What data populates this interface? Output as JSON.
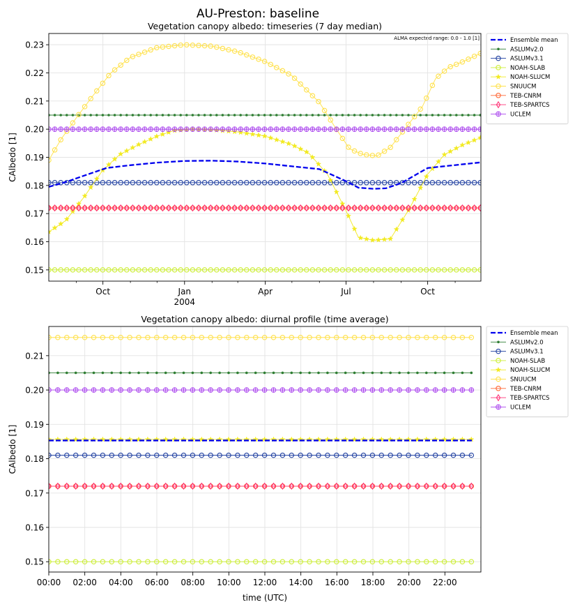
{
  "figure": {
    "title": "AU-Preston: baseline"
  },
  "chart_data": [
    {
      "type": "line",
      "title": "Vegetation canopy albedo: timeseries (7 day median)",
      "annotation": "ALMA expected range: 0.0 - 1.0 [1]",
      "xlabel": "",
      "ylabel": "CAlbedo [1]",
      "x_axis": {
        "kind": "date",
        "range": [
          "2003-08-01",
          "2004-11-30"
        ],
        "major_ticks": [
          {
            "date": "2003-10-01",
            "label": "Oct"
          },
          {
            "date": "2004-01-01",
            "label": "Jan",
            "sublabel": "2004"
          },
          {
            "date": "2004-04-01",
            "label": "Apr"
          },
          {
            "date": "2004-07-01",
            "label": "Jul"
          },
          {
            "date": "2004-10-01",
            "label": "Oct"
          }
        ],
        "minor_ticks": [
          "2003-09-01",
          "2003-11-01",
          "2003-12-01",
          "2004-02-01",
          "2004-03-01",
          "2004-05-01",
          "2004-06-01",
          "2004-08-01",
          "2004-09-01",
          "2004-11-01"
        ]
      },
      "ylim": [
        0.146,
        0.234
      ],
      "yticks": [
        0.15,
        0.16,
        0.17,
        0.18,
        0.19,
        0.2,
        0.21,
        0.22,
        0.23
      ],
      "ytick_labels": [
        "0.15",
        "0.16",
        "0.17",
        "0.18",
        "0.19",
        "0.20",
        "0.21",
        "0.22",
        "0.23"
      ],
      "grid": true,
      "legend_position": "outside-right-top",
      "series": [
        {
          "name": "Ensemble mean",
          "color": "#0000ee",
          "marker": "none",
          "style": "dashed",
          "x": [
            "2003-08-01",
            "2003-08-20",
            "2003-09-10",
            "2003-10-05",
            "2003-11-01",
            "2003-12-01",
            "2004-01-01",
            "2004-02-01",
            "2004-03-01",
            "2004-04-01",
            "2004-05-01",
            "2004-06-01",
            "2004-07-01",
            "2004-07-15",
            "2004-08-01",
            "2004-08-15",
            "2004-09-01",
            "2004-10-01",
            "2004-11-30"
          ],
          "y": [
            0.1795,
            0.1812,
            0.1835,
            0.1862,
            0.1872,
            0.1881,
            0.1887,
            0.1888,
            0.1885,
            0.1878,
            0.1868,
            0.1858,
            0.1815,
            0.1792,
            0.1788,
            0.179,
            0.1808,
            0.1862,
            0.1882
          ]
        },
        {
          "name": "ASLUMv2.0",
          "color": "#2e7d32",
          "marker": "dot",
          "style": "solid",
          "x": [
            "2003-08-01",
            "2004-11-30"
          ],
          "y": [
            0.205,
            0.205
          ]
        },
        {
          "name": "ASLUMv3.1",
          "color": "#1f3fa0",
          "marker": "circle",
          "style": "solid",
          "x": [
            "2003-08-01",
            "2004-11-30"
          ],
          "y": [
            0.181,
            0.181
          ]
        },
        {
          "name": "NOAH-SLAB",
          "color": "#ccee33",
          "marker": "circle",
          "style": "solid",
          "x": [
            "2003-08-01",
            "2004-11-30"
          ],
          "y": [
            0.15,
            0.15
          ]
        },
        {
          "name": "NOAH-SLUCM",
          "color": "#f2ea22",
          "marker": "star",
          "style": "solid",
          "x": [
            "2003-08-01",
            "2003-08-20",
            "2003-09-10",
            "2003-10-01",
            "2003-10-20",
            "2003-11-10",
            "2003-12-01",
            "2003-12-20",
            "2004-01-10",
            "2004-02-01",
            "2004-03-01",
            "2004-04-01",
            "2004-05-01",
            "2004-05-20",
            "2004-06-10",
            "2004-07-01",
            "2004-07-15",
            "2004-08-01",
            "2004-08-20",
            "2004-09-10",
            "2004-10-01",
            "2004-10-20",
            "2004-11-10",
            "2004-11-30"
          ],
          "y": [
            0.1635,
            0.1675,
            0.176,
            0.1855,
            0.191,
            0.1945,
            0.1975,
            0.1995,
            0.2,
            0.1998,
            0.199,
            0.1975,
            0.1945,
            0.1915,
            0.184,
            0.171,
            0.1615,
            0.1605,
            0.161,
            0.1715,
            0.184,
            0.191,
            0.1945,
            0.197
          ]
        },
        {
          "name": "SNUUCM",
          "color": "#ffe14a",
          "marker": "circle",
          "style": "solid",
          "x": [
            "2003-08-01",
            "2003-08-15",
            "2003-09-01",
            "2003-09-20",
            "2003-10-10",
            "2003-11-01",
            "2003-12-01",
            "2004-01-01",
            "2004-02-01",
            "2004-03-01",
            "2004-04-01",
            "2004-05-01",
            "2004-06-01",
            "2004-06-20",
            "2004-07-05",
            "2004-07-20",
            "2004-08-05",
            "2004-08-20",
            "2004-09-05",
            "2004-09-25",
            "2004-10-10",
            "2004-10-25",
            "2004-11-10",
            "2004-11-30"
          ],
          "y": [
            0.189,
            0.1965,
            0.204,
            0.212,
            0.22,
            0.2255,
            0.229,
            0.23,
            0.2295,
            0.2275,
            0.224,
            0.219,
            0.2095,
            0.2,
            0.193,
            0.191,
            0.1905,
            0.1935,
            0.2,
            0.208,
            0.218,
            0.222,
            0.224,
            0.227
          ]
        },
        {
          "name": "TEB-CNRM",
          "color": "#ff6633",
          "marker": "circle",
          "style": "solid",
          "x": [
            "2003-08-01",
            "2004-11-30"
          ],
          "y": [
            0.172,
            0.172
          ]
        },
        {
          "name": "TEB-SPARTCS",
          "color": "#ff3377",
          "marker": "diamond",
          "style": "solid",
          "x": [
            "2003-08-01",
            "2004-11-30"
          ],
          "y": [
            0.172,
            0.172
          ]
        },
        {
          "name": "UCLEM",
          "color": "#aa44ee",
          "marker": "plus-circle",
          "style": "solid",
          "x": [
            "2003-08-01",
            "2004-11-30"
          ],
          "y": [
            0.2,
            0.2
          ]
        }
      ]
    },
    {
      "type": "line",
      "title": "Vegetation canopy albedo: diurnal profile (time average)",
      "xlabel": "time (UTC)",
      "ylabel": "CAlbedo [1]",
      "xlim": [
        0,
        24
      ],
      "xticks": [
        0,
        2,
        4,
        6,
        8,
        10,
        12,
        14,
        16,
        18,
        20,
        22
      ],
      "xtick_labels": [
        "00:00",
        "02:00",
        "04:00",
        "06:00",
        "08:00",
        "10:00",
        "12:00",
        "14:00",
        "16:00",
        "18:00",
        "20:00",
        "22:00"
      ],
      "ylim": [
        0.147,
        0.2185
      ],
      "yticks": [
        0.15,
        0.16,
        0.17,
        0.18,
        0.19,
        0.2,
        0.21
      ],
      "ytick_labels": [
        "0.15",
        "0.16",
        "0.17",
        "0.18",
        "0.19",
        "0.20",
        "0.21"
      ],
      "grid": true,
      "legend_position": "outside-right-top",
      "series": [
        {
          "name": "Ensemble mean",
          "color": "#0000ee",
          "marker": "none",
          "style": "dashed",
          "x": [
            0,
            23.5
          ],
          "y": [
            0.1853,
            0.1853
          ]
        },
        {
          "name": "ASLUMv2.0",
          "color": "#2e7d32",
          "marker": "dot",
          "style": "solid",
          "x": [
            0,
            23.5
          ],
          "y": [
            0.205,
            0.205
          ]
        },
        {
          "name": "ASLUMv3.1",
          "color": "#1f3fa0",
          "marker": "circle",
          "style": "solid",
          "x": [
            0,
            23.5
          ],
          "y": [
            0.181,
            0.181
          ]
        },
        {
          "name": "NOAH-SLAB",
          "color": "#ccee33",
          "marker": "circle",
          "style": "solid",
          "x": [
            0,
            23.5
          ],
          "y": [
            0.15,
            0.15
          ]
        },
        {
          "name": "NOAH-SLUCM",
          "color": "#f2ea22",
          "marker": "star",
          "style": "solid",
          "x": [
            0,
            23.5
          ],
          "y": [
            0.1856,
            0.1856
          ]
        },
        {
          "name": "SNUUCM",
          "color": "#ffe14a",
          "marker": "circle",
          "style": "solid",
          "x": [
            0,
            23.5
          ],
          "y": [
            0.2153,
            0.2153
          ]
        },
        {
          "name": "TEB-CNRM",
          "color": "#ff6633",
          "marker": "circle",
          "style": "solid",
          "x": [
            0,
            23.5
          ],
          "y": [
            0.172,
            0.172
          ]
        },
        {
          "name": "TEB-SPARTCS",
          "color": "#ff3377",
          "marker": "diamond",
          "style": "solid",
          "x": [
            0,
            23.5
          ],
          "y": [
            0.172,
            0.172
          ]
        },
        {
          "name": "UCLEM",
          "color": "#aa44ee",
          "marker": "plus-circle",
          "style": "solid",
          "x": [
            0,
            23.5
          ],
          "y": [
            0.2,
            0.2
          ]
        }
      ]
    }
  ]
}
